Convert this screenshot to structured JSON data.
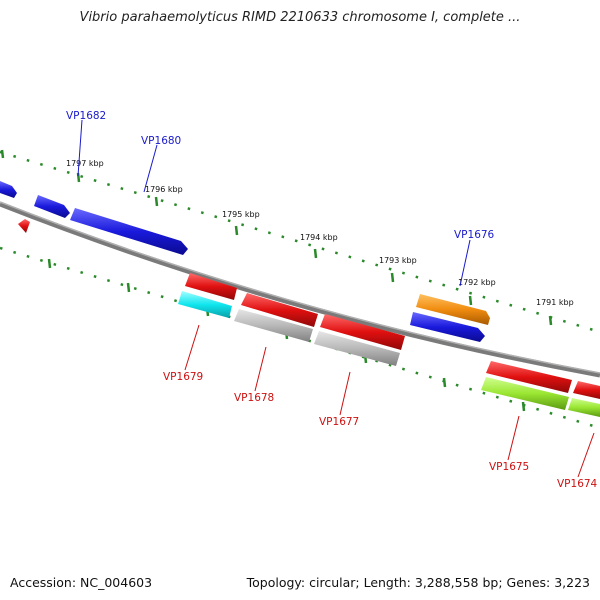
{
  "title": "Vibrio parahaemolyticus RIMD 2210633 chromosome I, complete ...",
  "footer": {
    "accession": "Accession: NC_004603",
    "info": "Topology: circular; Length: 3,288,558 bp; Genes: 3,223"
  },
  "colors": {
    "blue_gene": "#1a1adc",
    "red_gene": "#e01010",
    "cyan_gene": "#10e6ee",
    "gray_gene": "#b8b8b8",
    "orange_gene": "#f08c10",
    "lime_gene": "#9ae632",
    "tick": "#2a8a2a",
    "backbone": "#7a7a7a",
    "label_top": "#1a1acc",
    "label_bottom": "#cc1010"
  },
  "scale_labels": [
    "1797 kbp",
    "1796 kbp",
    "1795 kbp",
    "1794 kbp",
    "1793 kbp",
    "1792 kbp",
    "1791 kbp"
  ],
  "gene_labels": {
    "top": [
      "VP1682",
      "VP1680",
      "VP1676"
    ],
    "bottom": [
      "VP1679",
      "VP1678",
      "VP1677",
      "VP1675",
      "VP1674"
    ]
  }
}
